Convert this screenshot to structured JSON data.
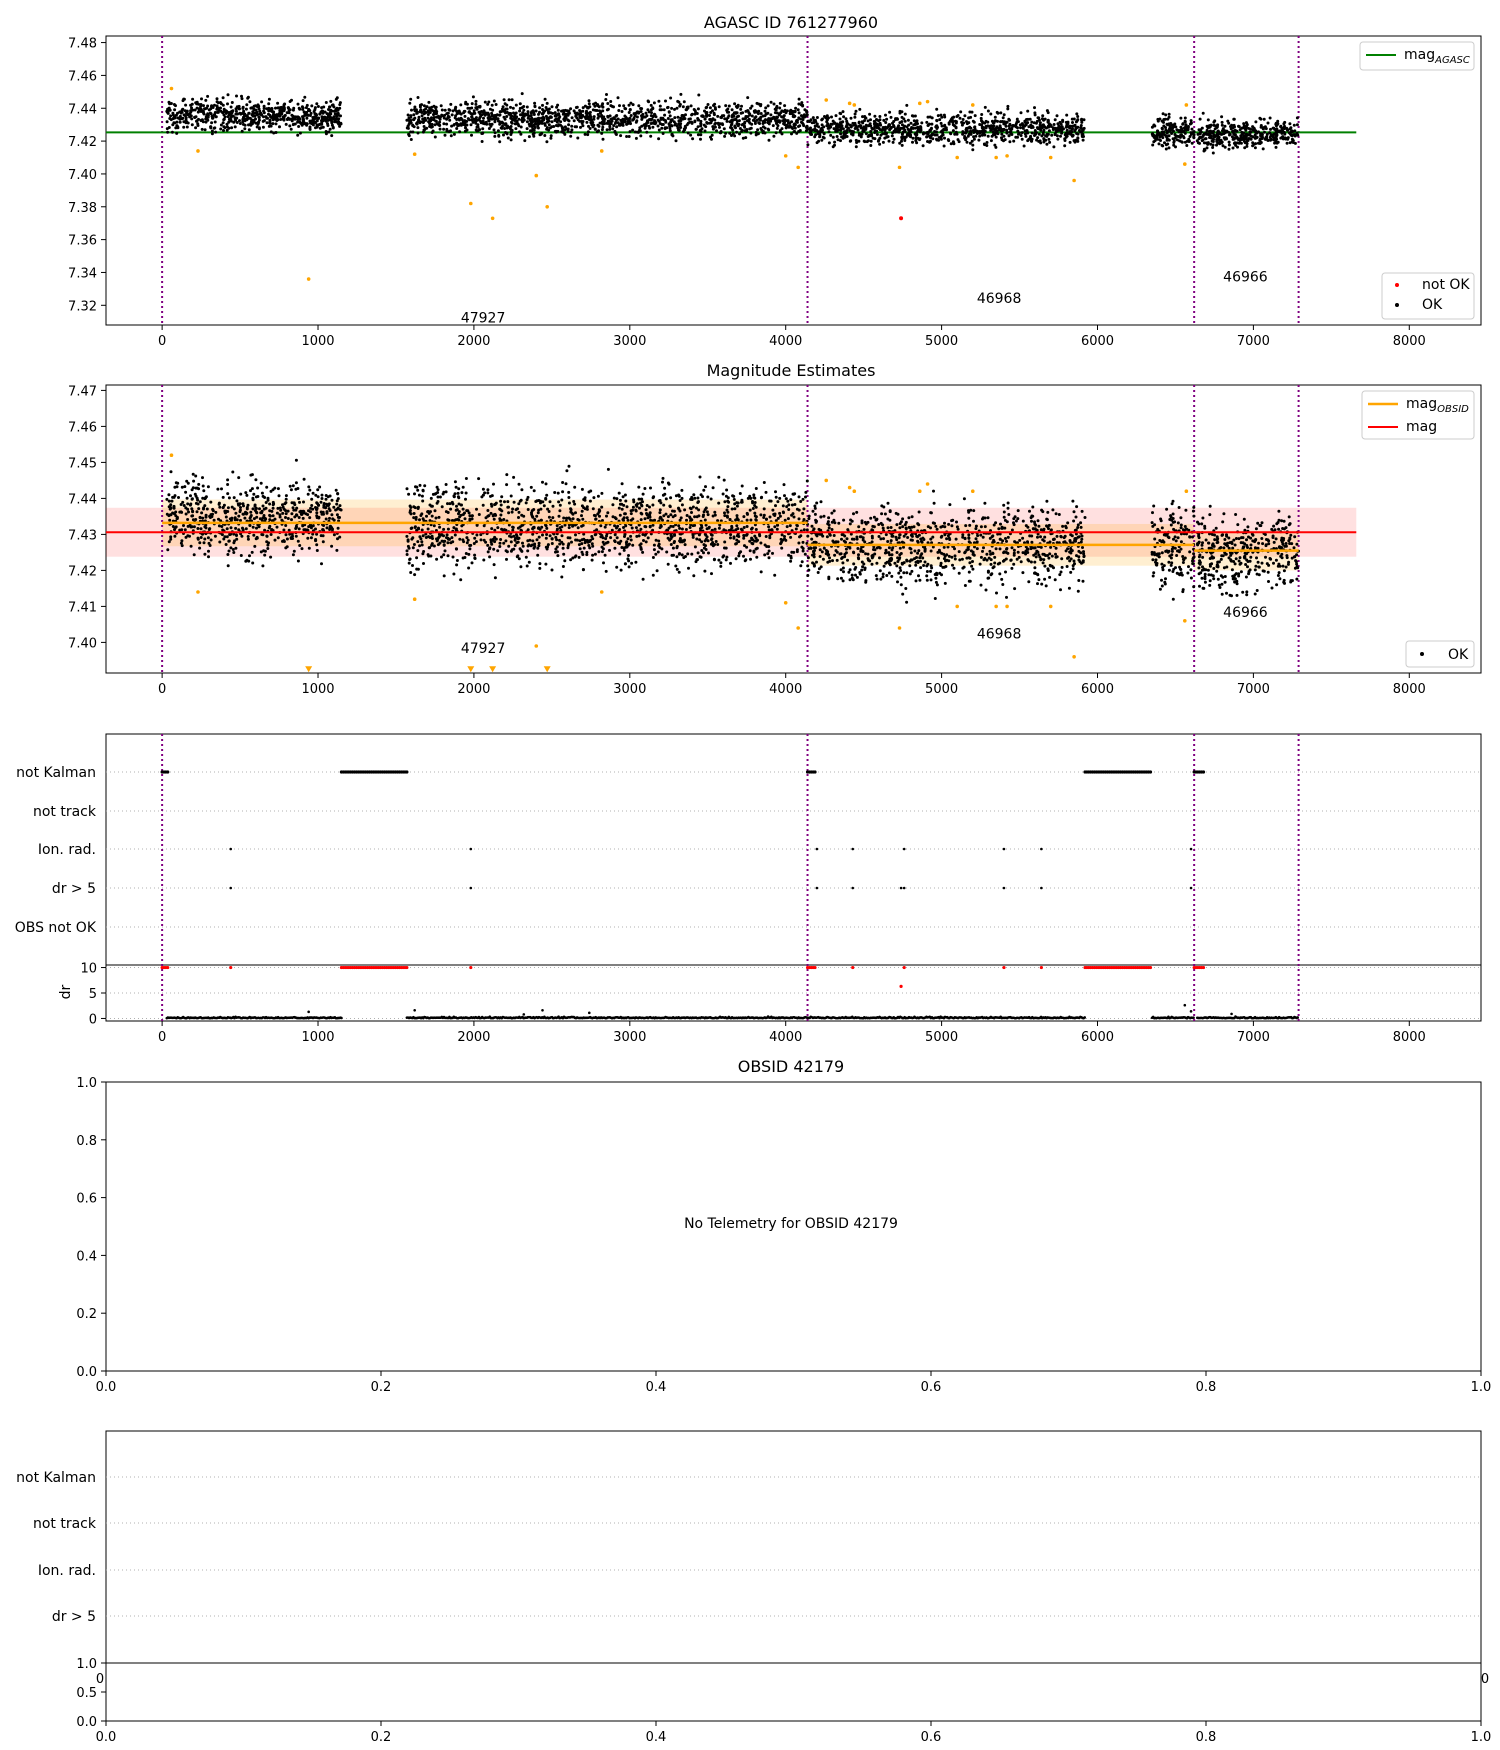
{
  "chart_data": [
    {
      "type": "scatter",
      "title": "AGASC ID 761277960",
      "xlim": [
        -360,
        8460
      ],
      "ylim": [
        7.308,
        7.484
      ],
      "xticks": [
        0,
        1000,
        2000,
        3000,
        4000,
        5000,
        6000,
        7000,
        8000
      ],
      "yticks": [
        7.32,
        7.34,
        7.36,
        7.38,
        7.4,
        7.42,
        7.44,
        7.46,
        7.48
      ],
      "ytick_labels": [
        "7.32",
        "7.34",
        "7.36",
        "7.38",
        "7.40",
        "7.42",
        "7.44",
        "7.46",
        "7.48"
      ],
      "vlines": [
        0,
        4140,
        6620,
        7290
      ],
      "hline": {
        "y": 7.4253,
        "x": [
          -360,
          7660
        ],
        "name_main": "mag",
        "name_sub": "AGASC",
        "color": "#008000"
      },
      "legend_top": "top-right",
      "legend_bottom": "bottom-right",
      "series": [
        {
          "name": "not OK",
          "color": "#ff0000",
          "points": [
            [
              4740,
              7.373
            ]
          ]
        },
        {
          "name": "OK",
          "color": "#000000",
          "segments": [
            {
              "x": [
                30,
                1150
              ],
              "mean": 7.4355,
              "spread": 0.0095,
              "n": 650
            },
            {
              "x": [
                1570,
                4140
              ],
              "mean": 7.4335,
              "spread": 0.0105,
              "n": 1400
            },
            {
              "x": [
                4140,
                5920
              ],
              "mean": 7.4275,
              "spread": 0.0095,
              "n": 950
            },
            {
              "x": [
                6350,
                6620
              ],
              "mean": 7.4255,
              "spread": 0.009,
              "n": 160
            },
            {
              "x": [
                6640,
                7290
              ],
              "mean": 7.4245,
              "spread": 0.0085,
              "n": 380
            }
          ]
        },
        {
          "name": "outliers",
          "color": "#ffa500",
          "points": [
            [
              60,
              7.452
            ],
            [
              230,
              7.414
            ],
            [
              940,
              7.336
            ],
            [
              1620,
              7.412
            ],
            [
              1980,
              7.382
            ],
            [
              2120,
              7.373
            ],
            [
              2400,
              7.399
            ],
            [
              2470,
              7.38
            ],
            [
              2820,
              7.414
            ],
            [
              4000,
              7.411
            ],
            [
              4080,
              7.404
            ],
            [
              4260,
              7.445
            ],
            [
              4410,
              7.443
            ],
            [
              4440,
              7.442
            ],
            [
              4730,
              7.404
            ],
            [
              4860,
              7.443
            ],
            [
              4910,
              7.444
            ],
            [
              5100,
              7.41
            ],
            [
              5200,
              7.442
            ],
            [
              5350,
              7.41
            ],
            [
              5420,
              7.411
            ],
            [
              5700,
              7.41
            ],
            [
              5850,
              7.396
            ],
            [
              6560,
              7.406
            ],
            [
              6570,
              7.442
            ]
          ]
        }
      ],
      "annotations": [
        {
          "text": "47927",
          "x": 2070,
          "y": 7.3125
        },
        {
          "text": "46968",
          "x": 5380,
          "y": 7.3245
        },
        {
          "text": "46966",
          "x": 6960,
          "y": 7.3375
        }
      ]
    },
    {
      "type": "scatter",
      "title": "Magnitude Estimates",
      "xlim": [
        -360,
        8460
      ],
      "ylim": [
        7.3915,
        7.4715
      ],
      "xticks": [
        0,
        1000,
        2000,
        3000,
        4000,
        5000,
        6000,
        7000,
        8000
      ],
      "yticks": [
        7.4,
        7.41,
        7.42,
        7.43,
        7.44,
        7.45,
        7.46,
        7.47
      ],
      "ytick_labels": [
        "7.40",
        "7.41",
        "7.42",
        "7.43",
        "7.44",
        "7.45",
        "7.46",
        "7.47"
      ],
      "vlines": [
        0,
        4140,
        6620,
        7290
      ],
      "mag_line": {
        "y": 7.4306,
        "band": [
          7.4238,
          7.4374
        ],
        "x": [
          -360,
          7660
        ],
        "name": "mag",
        "color": "#ff0000"
      },
      "obsid_lines": {
        "name_main": "mag",
        "name_sub": "OBSID",
        "color": "#ffa500",
        "items": [
          {
            "x": [
              0,
              4140
            ],
            "y": 7.4332,
            "band": [
              7.4267,
              7.4397
            ]
          },
          {
            "x": [
              4140,
              6620
            ],
            "y": 7.4271,
            "band": [
              7.4213,
              7.4329
            ]
          },
          {
            "x": [
              6620,
              7290
            ],
            "y": 7.4255,
            "band": [
              7.42,
              7.431
            ]
          }
        ]
      },
      "legend_top": "top-right",
      "legend_bottom": "bottom-right",
      "series": [
        {
          "name": "OK",
          "color": "#000000",
          "segments": [
            {
              "x": [
                30,
                1150
              ],
              "mean": 7.4345,
              "spread": 0.0105,
              "n": 650
            },
            {
              "x": [
                1570,
                4140
              ],
              "mean": 7.4325,
              "spread": 0.0115,
              "n": 1400
            },
            {
              "x": [
                4140,
                5920
              ],
              "mean": 7.427,
              "spread": 0.011,
              "n": 950
            },
            {
              "x": [
                6350,
                6620
              ],
              "mean": 7.4265,
              "spread": 0.011,
              "n": 160
            },
            {
              "x": [
                6640,
                7290
              ],
              "mean": 7.4245,
              "spread": 0.01,
              "n": 380
            }
          ]
        },
        {
          "name": "outliers",
          "color": "#ffa500",
          "points": [
            [
              60,
              7.452
            ],
            [
              230,
              7.414
            ],
            [
              1620,
              7.412
            ],
            [
              2400,
              7.399
            ],
            [
              2820,
              7.414
            ],
            [
              4000,
              7.411
            ],
            [
              4080,
              7.404
            ],
            [
              4260,
              7.445
            ],
            [
              4410,
              7.443
            ],
            [
              4440,
              7.442
            ],
            [
              4730,
              7.404
            ],
            [
              4860,
              7.442
            ],
            [
              4910,
              7.444
            ],
            [
              5100,
              7.41
            ],
            [
              5200,
              7.442
            ],
            [
              5350,
              7.41
            ],
            [
              5420,
              7.41
            ],
            [
              5700,
              7.41
            ],
            [
              5850,
              7.396
            ],
            [
              6560,
              7.406
            ],
            [
              6570,
              7.442
            ]
          ]
        },
        {
          "name": "below-range",
          "color": "#ffa500",
          "marker": "triangle-down",
          "points": [
            [
              940,
              7.392
            ],
            [
              1980,
              7.392
            ],
            [
              2120,
              7.392
            ],
            [
              2470,
              7.392
            ]
          ]
        }
      ],
      "annotations": [
        {
          "text": "47927",
          "x": 2070,
          "y": 7.3985
        },
        {
          "text": "46968",
          "x": 5380,
          "y": 7.4025
        },
        {
          "text": "46966",
          "x": 6960,
          "y": 7.4085
        }
      ]
    },
    {
      "type": "scatter",
      "xlim": [
        -360,
        8460
      ],
      "xticks": [
        0,
        1000,
        2000,
        3000,
        4000,
        5000,
        6000,
        7000,
        8000
      ],
      "vlines": [
        0,
        4140,
        6620,
        7290
      ],
      "flag_rows": [
        "not Kalman",
        "not track",
        "Ion. rad.",
        "dr > 5",
        "OBS not OK"
      ],
      "flags": {
        "not Kalman": [
          [
            0,
            40
          ],
          [
            1150,
            1570
          ],
          [
            4140,
            4190
          ],
          [
            5920,
            6350
          ],
          [
            6620,
            6680
          ]
        ],
        "Ion. rad.": [
          440,
          1980,
          4200,
          4430,
          4760,
          5400,
          5640,
          6600
        ],
        "dr > 5": [
          440,
          1980,
          4200,
          4430,
          4740,
          4760,
          5400,
          5640,
          6600
        ]
      },
      "dr": {
        "ylabel": "dr",
        "yticks": [
          0,
          5,
          10
        ],
        "ylim": [
          -0.5,
          10.5
        ],
        "red_ranges": [
          [
            0,
            40
          ],
          [
            1150,
            1570
          ],
          [
            4140,
            4190
          ],
          [
            5920,
            6350
          ],
          [
            6620,
            6680
          ]
        ],
        "red_points": [
          [
            440,
            10
          ],
          [
            1980,
            10
          ],
          [
            4430,
            10
          ],
          [
            4760,
            10
          ],
          [
            5400,
            10
          ],
          [
            5640,
            10
          ],
          [
            4740,
            6.3
          ]
        ],
        "black_segments": [
          [
            30,
            1150
          ],
          [
            1570,
            4140
          ],
          [
            4140,
            5920
          ],
          [
            6350,
            6620
          ],
          [
            6640,
            7290
          ]
        ],
        "black_extra": [
          [
            940,
            1.3
          ],
          [
            1620,
            1.6
          ],
          [
            2320,
            0.8
          ],
          [
            2440,
            1.6
          ],
          [
            2740,
            1.1
          ],
          [
            6560,
            2.6
          ],
          [
            6600,
            1.4
          ],
          [
            6860,
            0.9
          ]
        ]
      }
    },
    {
      "type": "scatter",
      "title": "OBSID 42179",
      "xlim": [
        0,
        1
      ],
      "ylim": [
        0,
        1
      ],
      "xticks": [
        0.0,
        0.2,
        0.4,
        0.6,
        0.8,
        1.0
      ],
      "yticks": [
        0.0,
        0.2,
        0.4,
        0.6,
        0.8,
        1.0
      ],
      "xtick_labels": [
        "0.0",
        "0.2",
        "0.4",
        "0.6",
        "0.8",
        "1.0"
      ],
      "ytick_labels": [
        "0.0",
        "0.2",
        "0.4",
        "0.6",
        "0.8",
        "1.0"
      ],
      "message": "No Telemetry for OBSID 42179",
      "message_pos": [
        0.5,
        0.5
      ]
    },
    {
      "type": "scatter",
      "flag_rows": [
        "not Kalman",
        "not track",
        "Ion. rad.",
        "dr > 5"
      ],
      "behind_ticks": [
        "0",
        "0"
      ],
      "bottom": {
        "xticks": [
          0.0,
          0.2,
          0.4,
          0.6,
          0.8,
          1.0
        ],
        "xtick_labels": [
          "0.0",
          "0.2",
          "0.4",
          "0.6",
          "0.8",
          "1.0"
        ],
        "yticks": [
          0.0,
          0.5,
          1.0
        ],
        "ytick_labels": [
          "0.0",
          "0.5",
          "1.0"
        ]
      }
    }
  ]
}
